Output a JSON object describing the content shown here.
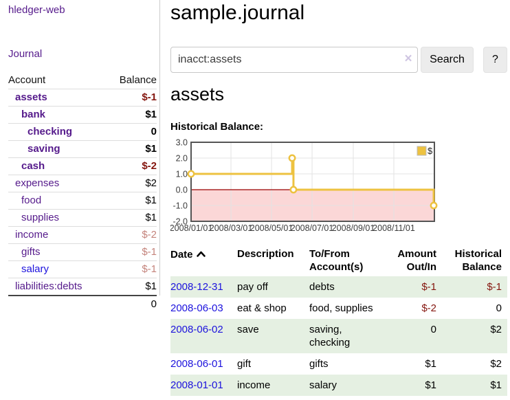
{
  "app": {
    "brand": "hledger-web"
  },
  "nav": {
    "journal": "Journal"
  },
  "sidebar": {
    "headers": {
      "account": "Account",
      "balance": "Balance"
    },
    "accounts": [
      {
        "name": "assets",
        "indent": 1,
        "balance": "$-1",
        "bold": true,
        "balance_tone": "negative-strong",
        "link_tone": "purple"
      },
      {
        "name": "bank",
        "indent": 2,
        "balance": "$1",
        "bold": true,
        "balance_tone": "normal",
        "link_tone": "purple"
      },
      {
        "name": "checking",
        "indent": 3,
        "balance": "0",
        "bold": true,
        "balance_tone": "normal",
        "link_tone": "purple"
      },
      {
        "name": "saving",
        "indent": 3,
        "balance": "$1",
        "bold": true,
        "balance_tone": "normal",
        "link_tone": "purple"
      },
      {
        "name": "cash",
        "indent": 2,
        "balance": "$-2",
        "bold": true,
        "balance_tone": "negative-strong",
        "link_tone": "purple"
      },
      {
        "name": "expenses",
        "indent": 1,
        "balance": "$2",
        "bold": false,
        "balance_tone": "normal",
        "link_tone": "purple"
      },
      {
        "name": "food",
        "indent": 2,
        "balance": "$1",
        "bold": false,
        "balance_tone": "normal",
        "link_tone": "purple"
      },
      {
        "name": "supplies",
        "indent": 2,
        "balance": "$1",
        "bold": false,
        "balance_tone": "normal",
        "link_tone": "purple"
      },
      {
        "name": "income",
        "indent": 1,
        "balance": "$-2",
        "bold": false,
        "balance_tone": "negative-soft",
        "link_tone": "purple"
      },
      {
        "name": "gifts",
        "indent": 2,
        "balance": "$-1",
        "bold": false,
        "balance_tone": "negative-soft",
        "link_tone": "purple"
      },
      {
        "name": "salary",
        "indent": 2,
        "balance": "$-1",
        "bold": false,
        "balance_tone": "negative-soft",
        "link_tone": "blue"
      },
      {
        "name": "liabilities:debts",
        "indent": 1,
        "balance": "$1",
        "bold": false,
        "balance_tone": "normal",
        "link_tone": "purple"
      }
    ],
    "total": "0"
  },
  "main": {
    "title": "sample.journal",
    "search": {
      "value": "inacct:assets",
      "clear_icon": "×",
      "search_button": "Search",
      "help_button": "?"
    },
    "account_heading": "assets",
    "chart_label": "Historical Balance:"
  },
  "chart_data": {
    "type": "line",
    "step": true,
    "title": "Historical Balance:",
    "series": [
      {
        "name": "$",
        "color": "#EDC240",
        "points": [
          [
            "2008-01-01",
            1
          ],
          [
            "2008-06-01",
            2
          ],
          [
            "2008-06-03",
            0
          ],
          [
            "2008-12-31",
            -1
          ]
        ]
      }
    ],
    "xlim": [
      "2008-01-01",
      "2009-01-01"
    ],
    "ylim": [
      -2,
      3
    ],
    "yticks": [
      3,
      2,
      1,
      0,
      -1,
      -2
    ],
    "ytick_labels": [
      "3.0",
      "2.0",
      "1.0",
      "0.0",
      "-1.0",
      "-2.0"
    ],
    "xticks": [
      "2008-01-01",
      "2008-03-01",
      "2008-05-01",
      "2008-07-01",
      "2008-09-01",
      "2008-11-01"
    ],
    "xtick_labels": [
      "2008/01/01",
      "2008/03/01",
      "2008/05/01",
      "2008/07/01",
      "2008/09/01",
      "2008/11/01"
    ],
    "grid": true,
    "legend_position": "top-right",
    "colors": {
      "border": "#545454",
      "gridline": "#e3e3e3",
      "negative_fill": "#fbd7d7",
      "zero_line": "#990000",
      "tick_text": "#3c3c3c",
      "marker_fill": "#ffffff"
    }
  },
  "register": {
    "columns": [
      {
        "line1": "Date",
        "line2": "",
        "align": "left",
        "sort": "asc"
      },
      {
        "line1": "Description",
        "line2": "",
        "align": "left"
      },
      {
        "line1": "To/From",
        "line2": "Account(s)",
        "align": "left"
      },
      {
        "line1": "Amount",
        "line2": "Out/In",
        "align": "right"
      },
      {
        "line1": "Historical",
        "line2": "Balance",
        "align": "right"
      }
    ],
    "rows": [
      {
        "date": "2008-12-31",
        "description": "pay off",
        "accounts": "debts",
        "amount": "$-1",
        "amount_tone": "negative",
        "balance": "$-1",
        "balance_tone": "negative",
        "shaded": true
      },
      {
        "date": "2008-06-03",
        "description": "eat & shop",
        "accounts": "food, supplies",
        "amount": "$-2",
        "amount_tone": "negative",
        "balance": "0",
        "balance_tone": "normal",
        "shaded": false
      },
      {
        "date": "2008-06-02",
        "description": "save",
        "accounts": "saving, checking",
        "amount": "0",
        "amount_tone": "normal",
        "balance": "$2",
        "balance_tone": "normal",
        "shaded": true
      },
      {
        "date": "2008-06-01",
        "description": "gift",
        "accounts": "gifts",
        "amount": "$1",
        "amount_tone": "normal",
        "balance": "$2",
        "balance_tone": "normal",
        "shaded": false
      },
      {
        "date": "2008-01-01",
        "description": "income",
        "accounts": "salary",
        "amount": "$1",
        "amount_tone": "normal",
        "balance": "$1",
        "balance_tone": "normal",
        "shaded": true
      }
    ]
  }
}
